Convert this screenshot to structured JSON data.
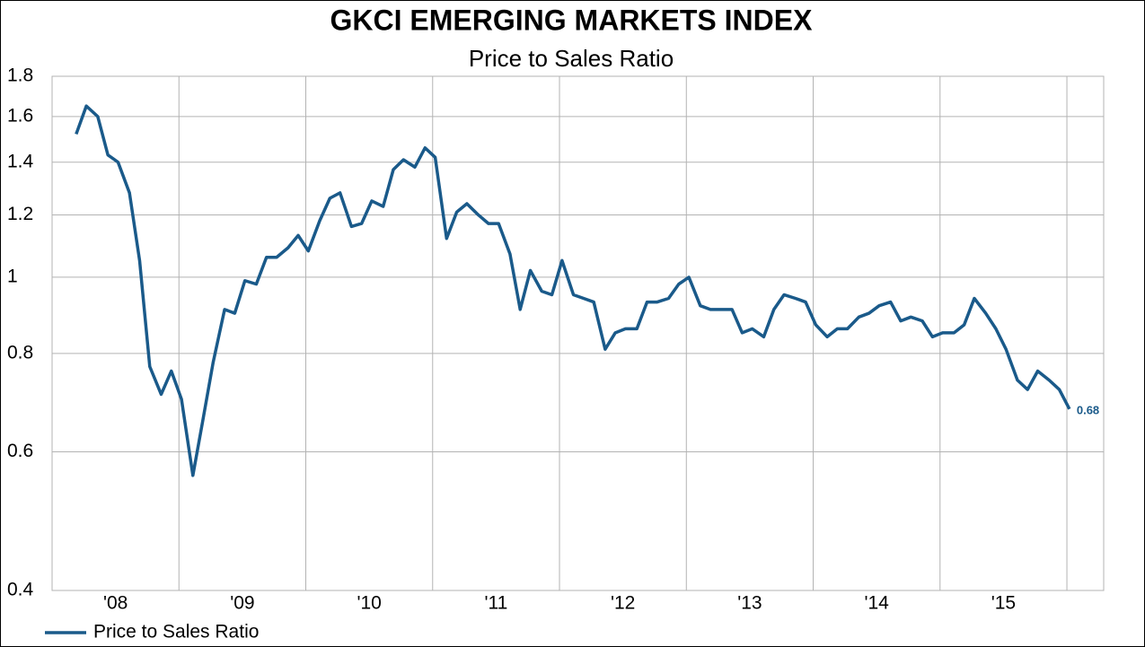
{
  "chart_data": {
    "type": "line",
    "title": "GKCI EMERGING MARKETS INDEX",
    "subtitle": "Price to Sales Ratio",
    "log_scale": true,
    "grid": true,
    "legend": "bottom-left",
    "xlim": [
      2008,
      2016.29
    ],
    "xticks": [
      {
        "value": 2008.5,
        "label": "'08"
      },
      {
        "value": 2009.5,
        "label": "'09"
      },
      {
        "value": 2010.5,
        "label": "'10"
      },
      {
        "value": 2011.5,
        "label": "'11"
      },
      {
        "value": 2012.5,
        "label": "'12"
      },
      {
        "value": 2013.5,
        "label": "'13"
      },
      {
        "value": 2014.5,
        "label": "'14"
      },
      {
        "value": 2015.5,
        "label": "'15"
      }
    ],
    "xgrid": [
      2009,
      2010,
      2011,
      2012,
      2013,
      2014,
      2015,
      2016
    ],
    "ylim": [
      0.4,
      1.8
    ],
    "yticks": [
      0.4,
      0.6,
      0.8,
      1,
      1.2,
      1.4,
      1.6,
      1.8
    ],
    "x": [
      2008.19,
      2008.27,
      2008.36,
      2008.44,
      2008.52,
      2008.61,
      2008.69,
      2008.77,
      2008.86,
      2008.94,
      2009.02,
      2009.11,
      2009.19,
      2009.27,
      2009.36,
      2009.44,
      2009.52,
      2009.61,
      2009.69,
      2009.77,
      2009.86,
      2009.94,
      2010.02,
      2010.11,
      2010.19,
      2010.27,
      2010.36,
      2010.44,
      2010.52,
      2010.61,
      2010.69,
      2010.77,
      2010.86,
      2010.94,
      2011.02,
      2011.11,
      2011.19,
      2011.27,
      2011.36,
      2011.44,
      2011.52,
      2011.61,
      2011.69,
      2011.77,
      2011.86,
      2011.94,
      2012.02,
      2012.11,
      2012.19,
      2012.27,
      2012.36,
      2012.44,
      2012.52,
      2012.61,
      2012.69,
      2012.77,
      2012.86,
      2012.94,
      2013.02,
      2013.11,
      2013.19,
      2013.27,
      2013.36,
      2013.44,
      2013.52,
      2013.61,
      2013.69,
      2013.77,
      2013.86,
      2013.94,
      2014.02,
      2014.11,
      2014.19,
      2014.27,
      2014.36,
      2014.44,
      2014.52,
      2014.61,
      2014.69,
      2014.77,
      2014.86,
      2014.94,
      2015.02,
      2015.11,
      2015.19,
      2015.27,
      2015.36,
      2015.44,
      2015.52,
      2015.61,
      2015.69,
      2015.77,
      2015.86,
      2015.94,
      2016.02
    ],
    "series": [
      {
        "name": "Price to Sales Ratio",
        "color": "#1a5a8a",
        "values": [
          1.52,
          1.65,
          1.6,
          1.43,
          1.4,
          1.28,
          1.05,
          0.77,
          0.71,
          0.76,
          0.7,
          0.56,
          0.66,
          0.78,
          0.91,
          0.9,
          0.99,
          0.98,
          1.06,
          1.06,
          1.09,
          1.13,
          1.08,
          1.18,
          1.26,
          1.28,
          1.16,
          1.17,
          1.25,
          1.23,
          1.37,
          1.41,
          1.38,
          1.46,
          1.42,
          1.12,
          1.21,
          1.24,
          1.2,
          1.17,
          1.17,
          1.07,
          0.91,
          1.02,
          0.96,
          0.95,
          1.05,
          0.95,
          0.94,
          0.93,
          0.81,
          0.85,
          0.86,
          0.86,
          0.93,
          0.93,
          0.94,
          0.98,
          1.0,
          0.92,
          0.91,
          0.91,
          0.91,
          0.85,
          0.86,
          0.84,
          0.91,
          0.95,
          0.94,
          0.93,
          0.87,
          0.84,
          0.86,
          0.86,
          0.89,
          0.9,
          0.92,
          0.93,
          0.88,
          0.89,
          0.88,
          0.84,
          0.85,
          0.85,
          0.87,
          0.94,
          0.9,
          0.86,
          0.81,
          0.74,
          0.72,
          0.76,
          0.74,
          0.72,
          0.68
        ]
      }
    ]
  }
}
